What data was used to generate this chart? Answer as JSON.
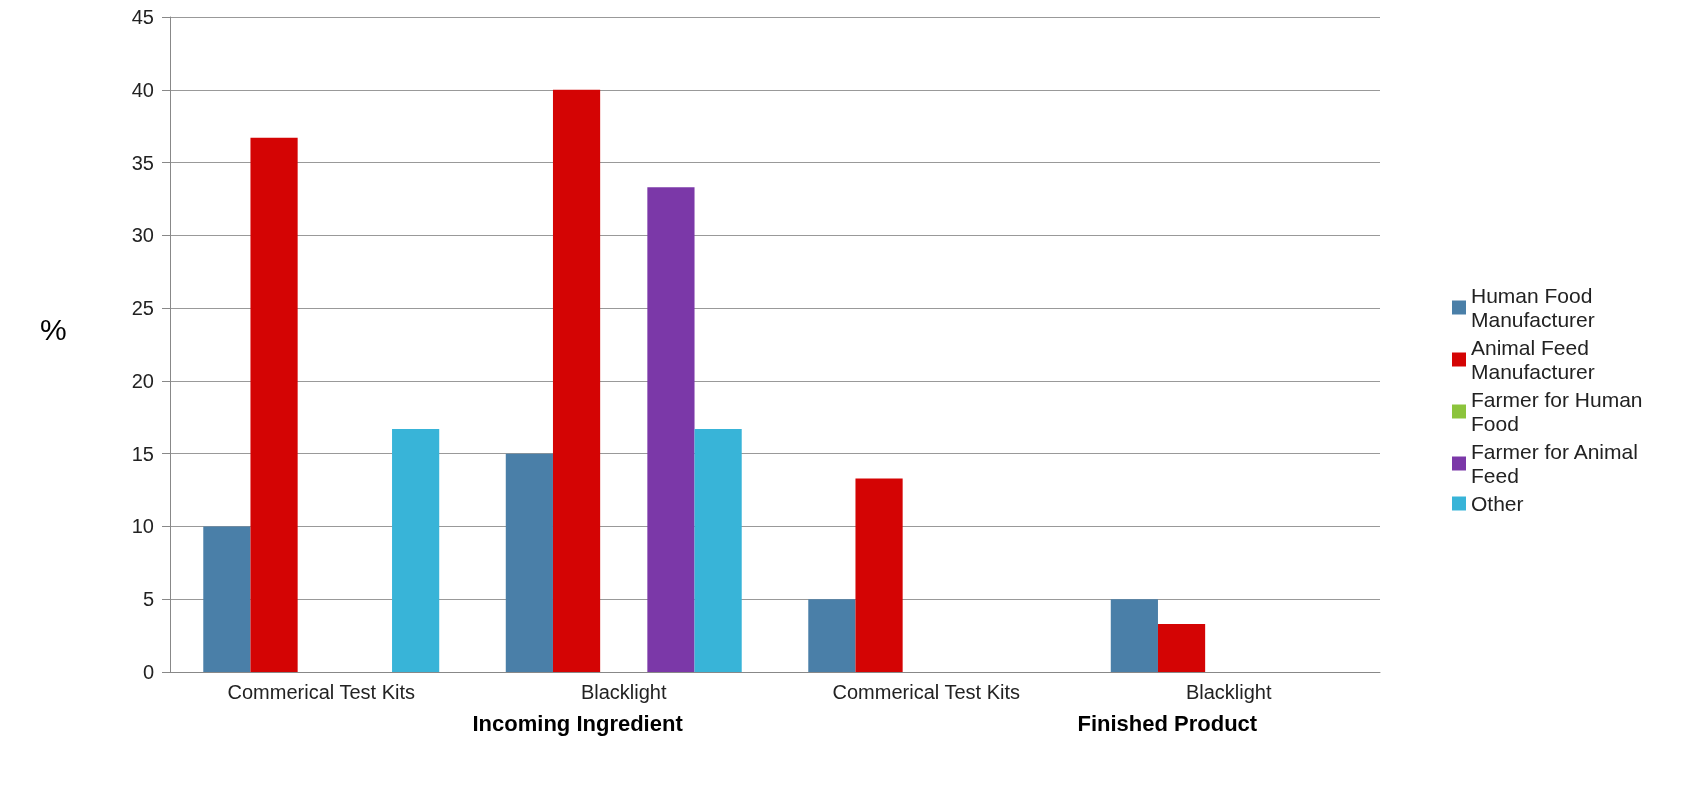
{
  "chart_data": {
    "type": "bar",
    "ylabel": "%",
    "categories": [
      "Commerical Test Kits",
      "Blacklight",
      "Commerical Test Kits",
      "Blacklight"
    ],
    "series": [
      {
        "name": "Human Food Manufacturer",
        "color": "#4a7fa8",
        "values": [
          10,
          15,
          5,
          5
        ]
      },
      {
        "name": "Animal Feed Manufacturer",
        "color": "#d40404",
        "values": [
          36.7,
          40,
          13.3,
          3.3
        ]
      },
      {
        "name": "Farmer for Human Food",
        "color": "#8cc43c",
        "values": [
          0,
          0,
          0,
          0
        ]
      },
      {
        "name": "Farmer for Animal Feed",
        "color": "#7b38a8",
        "values": [
          0,
          33.3,
          0,
          0
        ]
      },
      {
        "name": "Other",
        "color": "#38b4d8",
        "values": [
          16.7,
          16.7,
          0,
          0
        ]
      }
    ],
    "annotations": [
      "Incoming Ingredient",
      "Finished Product"
    ],
    "ylim": [
      0,
      45
    ],
    "yticks": [
      0,
      5,
      10,
      15,
      20,
      25,
      30,
      35,
      40,
      45
    ],
    "grid": "y",
    "legend": "right"
  }
}
